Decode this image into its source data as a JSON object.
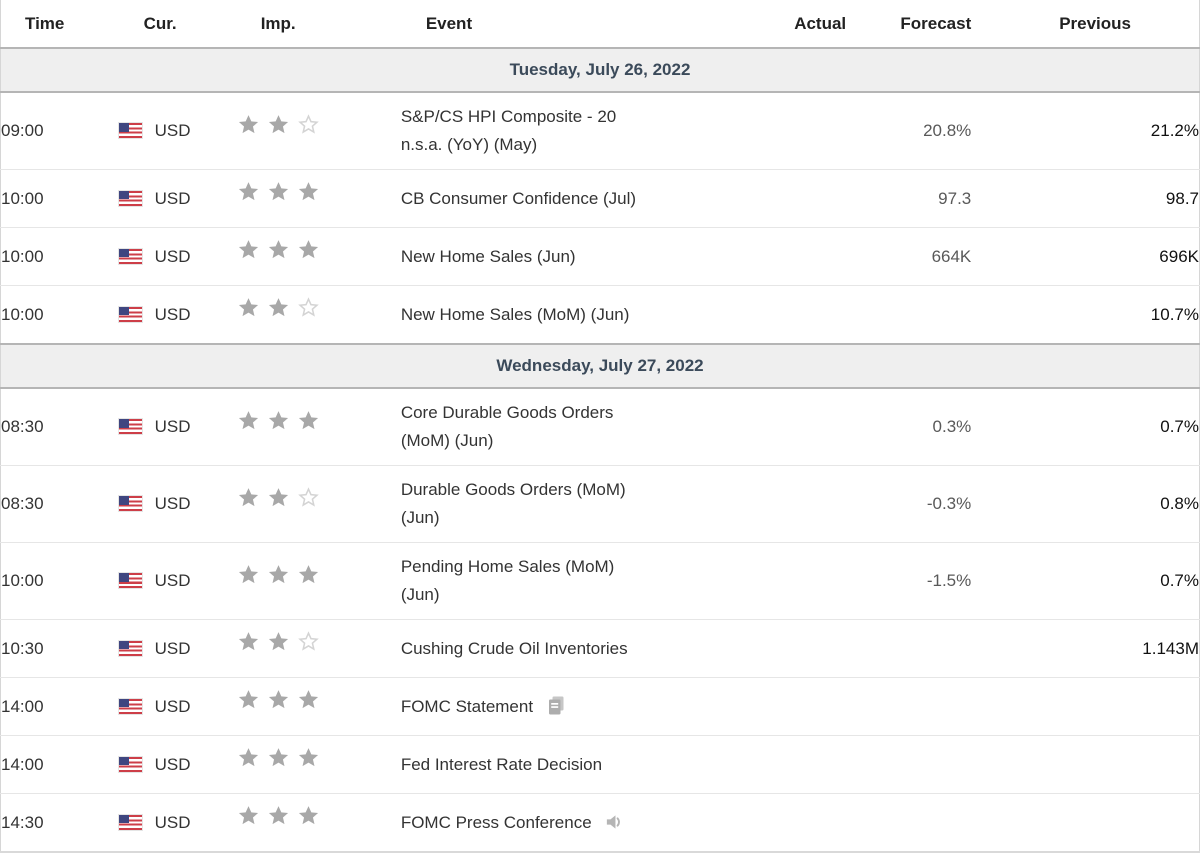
{
  "table": {
    "columns": [
      {
        "key": "time",
        "label": "Time"
      },
      {
        "key": "cur",
        "label": "Cur."
      },
      {
        "key": "imp",
        "label": "Imp."
      },
      {
        "key": "event",
        "label": "Event"
      },
      {
        "key": "actual",
        "label": "Actual"
      },
      {
        "key": "forecast",
        "label": "Forecast"
      },
      {
        "key": "previous",
        "label": "Previous"
      }
    ],
    "rows": [
      {
        "type": "date",
        "label": "Tuesday, July 26, 2022"
      },
      {
        "type": "event",
        "time": "09:00",
        "flag": "us-flag",
        "currency": "USD",
        "stars": 2,
        "event": "S&P/CS HPI Composite - 20\nn.s.a. (YoY) (May)",
        "actual": "",
        "forecast": "20.8%",
        "previous": "21.2%",
        "icon": null
      },
      {
        "type": "event",
        "time": "10:00",
        "flag": "us-flag",
        "currency": "USD",
        "stars": 3,
        "event": "CB Consumer Confidence (Jul)",
        "actual": "",
        "forecast": "97.3",
        "previous": "98.7",
        "icon": null
      },
      {
        "type": "event",
        "time": "10:00",
        "flag": "us-flag",
        "currency": "USD",
        "stars": 3,
        "event": "New Home Sales (Jun)",
        "actual": "",
        "forecast": "664K",
        "previous": "696K",
        "icon": null
      },
      {
        "type": "event",
        "time": "10:00",
        "flag": "us-flag",
        "currency": "USD",
        "stars": 2,
        "event": "New Home Sales (MoM) (Jun)",
        "actual": "",
        "forecast": "",
        "previous": "10.7%",
        "icon": null
      },
      {
        "type": "date",
        "label": "Wednesday, July 27, 2022"
      },
      {
        "type": "event",
        "time": "08:30",
        "flag": "us-flag",
        "currency": "USD",
        "stars": 3,
        "event": "Core Durable Goods Orders\n(MoM) (Jun)",
        "actual": "",
        "forecast": "0.3%",
        "previous": "0.7%",
        "icon": null
      },
      {
        "type": "event",
        "time": "08:30",
        "flag": "us-flag",
        "currency": "USD",
        "stars": 2,
        "event": "Durable Goods Orders (MoM)\n(Jun)",
        "actual": "",
        "forecast": "-0.3%",
        "previous": "0.8%",
        "icon": null
      },
      {
        "type": "event",
        "time": "10:00",
        "flag": "us-flag",
        "currency": "USD",
        "stars": 3,
        "event": "Pending Home Sales (MoM)\n(Jun)",
        "actual": "",
        "forecast": "-1.5%",
        "previous": "0.7%",
        "icon": null
      },
      {
        "type": "event",
        "time": "10:30",
        "flag": "us-flag",
        "currency": "USD",
        "stars": 2,
        "event": "Cushing Crude Oil Inventories",
        "actual": "",
        "forecast": "",
        "previous": "1.143M",
        "icon": null
      },
      {
        "type": "event",
        "time": "14:00",
        "flag": "us-flag",
        "currency": "USD",
        "stars": 3,
        "event": "FOMC Statement",
        "actual": "",
        "forecast": "",
        "previous": "",
        "icon": "report"
      },
      {
        "type": "event",
        "time": "14:00",
        "flag": "us-flag",
        "currency": "USD",
        "stars": 3,
        "event": "Fed Interest Rate Decision",
        "actual": "",
        "forecast": "",
        "previous": "",
        "icon": null
      },
      {
        "type": "event",
        "time": "14:30",
        "flag": "us-flag",
        "currency": "USD",
        "stars": 3,
        "event": "FOMC Press Conference",
        "actual": "",
        "forecast": "",
        "previous": "",
        "icon": "speaker"
      }
    ],
    "importance_max_stars": 3
  },
  "colors": {
    "date_band_bg": "#efefef",
    "date_band_border": "#b5b5b5",
    "date_band_text": "#3b4a5a",
    "row_border": "#e6e6e6",
    "star_filled": "#a8a8a8",
    "star_empty_stroke": "#d4d4d4",
    "forecast_text": "#595959",
    "previous_text": "#111111",
    "header_text": "#222222",
    "flag_red": "#cd3e48",
    "flag_blue": "#3f4680"
  }
}
